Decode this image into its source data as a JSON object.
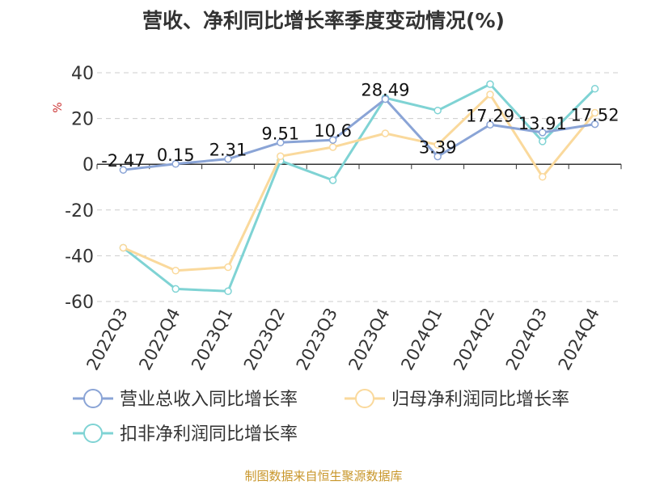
{
  "chart_data": {
    "type": "line",
    "title": "营收、净利同比增长率季度变动情况(%)",
    "ylabel": "%",
    "xlabel": "",
    "ylim": [
      -60,
      40
    ],
    "yticks": [
      40,
      20,
      0,
      -20,
      -40,
      -60
    ],
    "grid": true,
    "legend_position": "bottom",
    "categories": [
      "2022Q3",
      "2022Q4",
      "2023Q1",
      "2023Q2",
      "2023Q3",
      "2023Q4",
      "2024Q1",
      "2024Q2",
      "2024Q3",
      "2024Q4"
    ],
    "series": [
      {
        "name": "营业总收入同比增长率",
        "color": "#8aa4d6",
        "values": [
          -2.47,
          0.15,
          2.31,
          9.51,
          10.6,
          28.49,
          3.39,
          17.29,
          13.91,
          17.52
        ],
        "labels": [
          "-2.47",
          "0.15",
          "2.31",
          "9.51",
          "10.6",
          "28.49",
          "3.39",
          "17.29",
          "13.91",
          "17.52"
        ]
      },
      {
        "name": "归母净利润同比增长率",
        "color": "#fad99c",
        "values": [
          -36.5,
          -46.5,
          -45,
          3.5,
          7.5,
          13.5,
          8.5,
          30.5,
          -5.5,
          22.5
        ]
      },
      {
        "name": "扣非净利润同比增长率",
        "color": "#7fd3d4",
        "values": [
          -36.5,
          -54.5,
          -55.5,
          1.5,
          -7,
          29,
          23.5,
          35,
          10,
          33
        ]
      }
    ],
    "source": "制图数据来自恒生聚源数据库"
  }
}
